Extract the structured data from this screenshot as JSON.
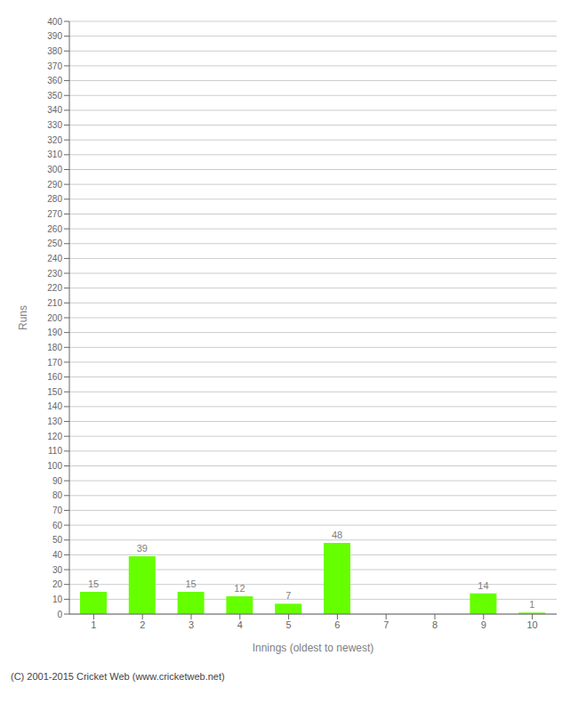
{
  "chart_data": {
    "type": "bar",
    "categories": [
      "1",
      "2",
      "3",
      "4",
      "5",
      "6",
      "7",
      "8",
      "9",
      "10"
    ],
    "values": [
      15,
      39,
      15,
      12,
      7,
      48,
      0,
      0,
      14,
      1
    ],
    "color": "#66ff00",
    "xlabel": "Innings (oldest to newest)",
    "ylabel": "Runs",
    "ylim": [
      0,
      400
    ],
    "yticks": [
      0,
      10,
      20,
      30,
      40,
      50,
      60,
      70,
      80,
      90,
      100,
      110,
      120,
      130,
      140,
      150,
      160,
      170,
      180,
      190,
      200,
      210,
      220,
      230,
      240,
      250,
      260,
      270,
      280,
      290,
      300,
      310,
      320,
      330,
      340,
      350,
      360,
      370,
      380,
      390,
      400
    ],
    "grid": true,
    "data_labels": true,
    "annotations": [
      "(C) 2001-2015 Cricket Web (www.cricketweb.net)"
    ]
  }
}
